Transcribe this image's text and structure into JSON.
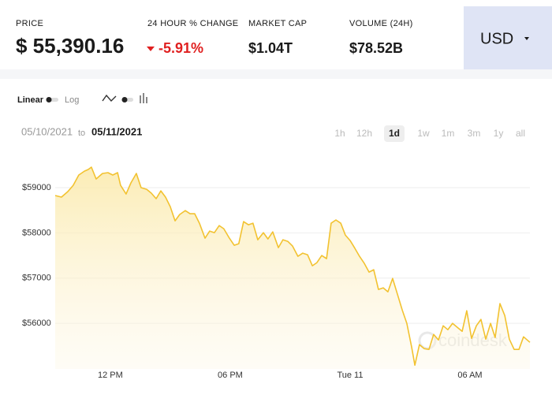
{
  "header": {
    "stats": [
      {
        "label": "PRICE",
        "value": "$ 55,390.16"
      },
      {
        "label": "24 HOUR % CHANGE",
        "value": "-5.91%"
      },
      {
        "label": "MARKET CAP",
        "value": "$1.04T"
      },
      {
        "label": "VOLUME (24H)",
        "value": "$78.52B"
      }
    ],
    "currency": "USD"
  },
  "controls": {
    "scale_options": [
      "Linear",
      "Log"
    ]
  },
  "date_range": {
    "from": "05/10/2021",
    "separator": "to",
    "to": "05/11/2021"
  },
  "ranges": [
    "1h",
    "12h",
    "1d",
    "1w",
    "1m",
    "3m",
    "1y",
    "all"
  ],
  "selected_range": 2,
  "chart_data": {
    "type": "line",
    "watermark": "coindesk",
    "x": [
      9.24,
      9.55,
      9.87,
      10.14,
      10.42,
      10.7,
      10.89,
      11.05,
      11.29,
      11.61,
      11.88,
      12.12,
      12.36,
      12.51,
      12.79,
      13.03,
      13.3,
      13.54,
      13.82,
      14.05,
      14.29,
      14.53,
      14.76,
      15.0,
      15.24,
      15.47,
      15.75,
      15.99,
      16.22,
      16.46,
      16.74,
      16.97,
      17.21,
      17.45,
      17.68,
      17.96,
      18.2,
      18.43,
      18.67,
      18.91,
      19.14,
      19.38,
      19.66,
      19.89,
      20.13,
      20.41,
      20.64,
      20.88,
      21.12,
      21.39,
      21.63,
      21.87,
      22.11,
      22.34,
      22.58,
      22.82,
      23.05,
      23.29,
      23.53,
      23.76,
      24.0,
      24.24,
      24.47,
      24.71,
      24.95,
      25.18,
      25.42,
      25.66,
      25.89,
      26.13,
      26.37,
      26.61,
      26.84,
      27.08,
      27.24,
      27.47,
      27.71,
      27.95,
      28.18,
      28.42,
      28.66,
      28.89,
      29.13,
      29.37,
      29.61,
      29.84,
      30.08,
      30.32,
      30.55,
      30.79,
      31.03,
      31.26,
      31.5,
      31.74,
      31.97,
      32.21,
      32.45,
      32.68,
      33.0
    ],
    "series": [
      {
        "name": "Price",
        "color": "#f2c230",
        "values": [
          58826,
          58791,
          58913,
          59052,
          59279,
          59366,
          59401,
          59454,
          59192,
          59314,
          59332,
          59279,
          59332,
          59052,
          58860,
          59105,
          59314,
          59000,
          58965,
          58878,
          58756,
          58930,
          58791,
          58581,
          58267,
          58407,
          58494,
          58424,
          58424,
          58215,
          57883,
          58040,
          58005,
          58162,
          58093,
          57883,
          57726,
          57761,
          58250,
          58180,
          58215,
          57848,
          58005,
          57866,
          58023,
          57674,
          57848,
          57813,
          57709,
          57482,
          57552,
          57517,
          57272,
          57342,
          57499,
          57430,
          58215,
          58285,
          58215,
          57953,
          57831,
          57656,
          57482,
          57325,
          57133,
          57185,
          56749,
          56784,
          56697,
          56993,
          56644,
          56295,
          55999,
          55475,
          55074,
          55528,
          55440,
          55423,
          55754,
          55632,
          55946,
          55859,
          55999,
          55911,
          55824,
          56278,
          55667,
          55946,
          56086,
          55650,
          55999,
          55685,
          56435,
          56173,
          55650,
          55423,
          55423,
          55702,
          55580
        ]
      }
    ],
    "xlim": [
      9.24,
      33.0
    ],
    "xticks": [
      {
        "value": 12,
        "label": "12 PM"
      },
      {
        "value": 18,
        "label": "06 PM"
      },
      {
        "value": 24,
        "label": "Tue 11"
      },
      {
        "value": 30,
        "label": "06 AM"
      }
    ],
    "ylim": [
      54990,
      59925
    ],
    "yticks": [
      {
        "value": 56000,
        "label": "$56000"
      },
      {
        "value": 57000,
        "label": "$57000"
      },
      {
        "value": 58000,
        "label": "$58000"
      },
      {
        "value": 59000,
        "label": "$59000"
      }
    ],
    "grid": true
  }
}
